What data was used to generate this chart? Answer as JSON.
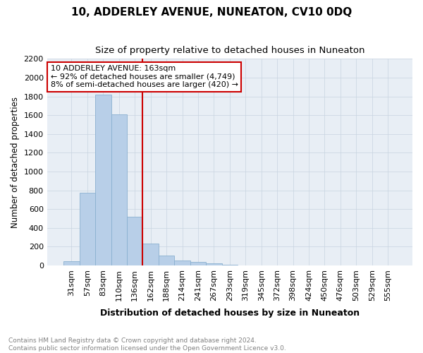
{
  "title": "10, ADDERLEY AVENUE, NUNEATON, CV10 0DQ",
  "subtitle": "Size of property relative to detached houses in Nuneaton",
  "xlabel": "Distribution of detached houses by size in Nuneaton",
  "ylabel": "Number of detached properties",
  "categories": [
    "31sqm",
    "57sqm",
    "83sqm",
    "110sqm",
    "136sqm",
    "162sqm",
    "188sqm",
    "214sqm",
    "241sqm",
    "267sqm",
    "293sqm",
    "319sqm",
    "345sqm",
    "372sqm",
    "398sqm",
    "424sqm",
    "450sqm",
    "476sqm",
    "503sqm",
    "529sqm",
    "555sqm"
  ],
  "values": [
    45,
    775,
    1820,
    1610,
    520,
    230,
    105,
    55,
    35,
    20,
    10,
    0,
    0,
    0,
    0,
    0,
    0,
    0,
    0,
    0,
    0
  ],
  "bar_color": "#b8cfe8",
  "bar_edge_color": "#8ab0d0",
  "property_line_x": 4.5,
  "property_line_color": "#cc0000",
  "annotation_line1": "10 ADDERLEY AVENUE: 163sqm",
  "annotation_line2": "← 92% of detached houses are smaller (4,749)",
  "annotation_line3": "8% of semi-detached houses are larger (420) →",
  "annotation_box_color": "#cc0000",
  "annotation_box_fill": "#ffffff",
  "ylim": [
    0,
    2200
  ],
  "yticks": [
    0,
    200,
    400,
    600,
    800,
    1000,
    1200,
    1400,
    1600,
    1800,
    2000,
    2200
  ],
  "grid_color": "#c8d4e0",
  "bg_color": "#e8eef5",
  "footnote": "Contains HM Land Registry data © Crown copyright and database right 2024.\nContains public sector information licensed under the Open Government Licence v3.0.",
  "title_fontsize": 11,
  "subtitle_fontsize": 9.5,
  "xlabel_fontsize": 9,
  "ylabel_fontsize": 8.5,
  "tick_fontsize": 8,
  "footnote_fontsize": 6.5,
  "footnote_color": "#808080"
}
